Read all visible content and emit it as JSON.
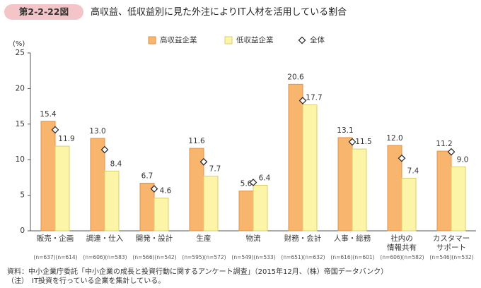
{
  "chart_data": {
    "type": "bar",
    "figure_label": "第2-2-22図",
    "title": "高収益、低収益別に見た外注によりIT人材を活用している割合",
    "y_unit_label": "(%)",
    "categories": [
      "販売・企画",
      "調達・仕入",
      "開発・設計",
      "生産",
      "物流",
      "財務・会計",
      "人事・総務",
      "社内の\n情報共有",
      "カスタマー\nサポート"
    ],
    "series": [
      {
        "name": "高収益企業",
        "color": "#f7b56e",
        "stroke": "#e0924a",
        "values": [
          15.4,
          13.0,
          6.7,
          11.6,
          5.6,
          20.6,
          13.1,
          12.0,
          11.2
        ],
        "value_labels": [
          "15.4",
          "13.0",
          "6.7",
          "11.6",
          "5.6",
          "20.6",
          "13.1",
          "12.0",
          "11.2"
        ],
        "n_labels": [
          "(n=637)",
          "(n=606)",
          "(n=566)",
          "(n=595)",
          "(n=549)",
          "(n=651)",
          "(n=616)",
          "(n=606)",
          "(n=546)"
        ]
      },
      {
        "name": "低収益企業",
        "color": "#fcf4a6",
        "stroke": "#d9cf6f",
        "values": [
          11.9,
          8.4,
          4.6,
          7.7,
          6.4,
          17.7,
          11.5,
          7.4,
          9.0
        ],
        "value_labels": [
          "11.9",
          "8.4",
          "4.6",
          "7.7",
          "6.4",
          "17.7",
          "11.5",
          "7.4",
          "9.0"
        ],
        "n_labels": [
          "(n=614)",
          "(n=583)",
          "(n=542)",
          "(n=572)",
          "(n=533)",
          "(n=632)",
          "(n=601)",
          "(n=582)",
          "(n=532)"
        ]
      },
      {
        "name": "全体",
        "type": "scatter",
        "marker": "diamond",
        "color": "#ffffff",
        "stroke": "#222222",
        "values": [
          14.2,
          11.4,
          5.9,
          9.7,
          6.8,
          18.3,
          12.5,
          10.2,
          11.1
        ]
      }
    ],
    "ylim": [
      0,
      25
    ],
    "yticks": [
      0,
      5,
      10,
      15,
      20,
      25
    ],
    "grid": false,
    "notes": [
      "資料：中小企業庁委託「中小企業の成長と投資行動に関するアンケート調査」（2015年12月、（株）帝国データバンク）",
      "（注）　IT投資を行っている企業を集計している。"
    ]
  }
}
